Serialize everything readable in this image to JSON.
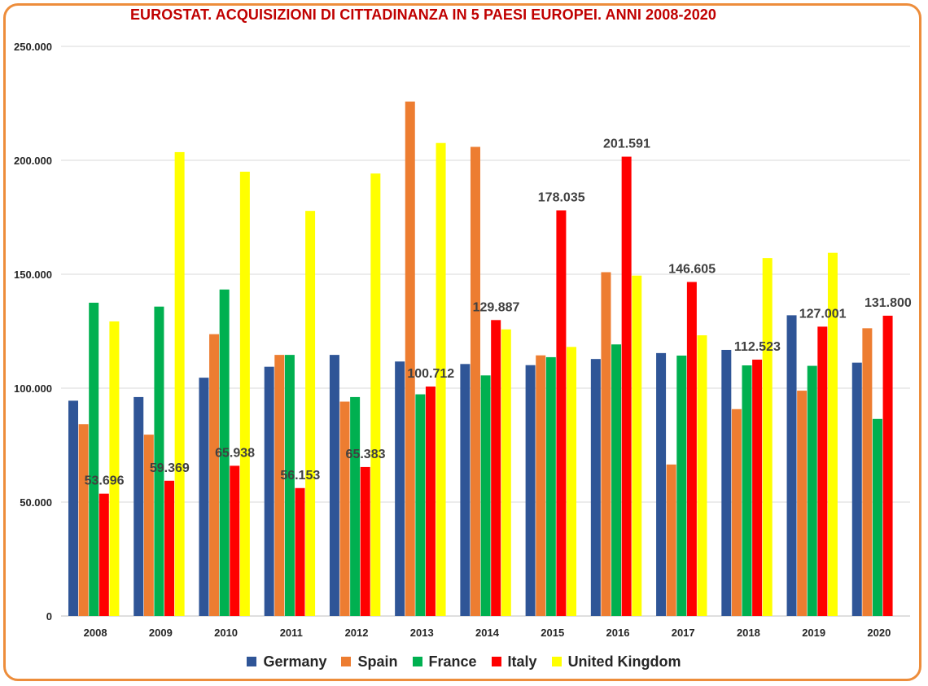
{
  "chart_data": {
    "type": "bar",
    "title": "EUROSTAT. ACQUISIZIONI DI CITTADINANZA IN 5 PAESI EUROPEI. ANNI 2008-2020",
    "xlabel": "",
    "ylabel": "",
    "ylim": [
      0,
      250000
    ],
    "yticks": [
      "0",
      "50.000",
      "100.000",
      "150.000",
      "200.000",
      "250.000"
    ],
    "ytick_values": [
      0,
      50000,
      100000,
      150000,
      200000,
      250000
    ],
    "grid": true,
    "legend_position": "bottom",
    "categories": [
      "2008",
      "2009",
      "2010",
      "2011",
      "2012",
      "2013",
      "2014",
      "2015",
      "2016",
      "2017",
      "2018",
      "2019",
      "2020"
    ],
    "series": [
      {
        "name": "Germany",
        "color": "#2F5597",
        "values": [
          94500,
          96100,
          104600,
          109400,
          114600,
          111700,
          110600,
          110100,
          112800,
          115400,
          116800,
          132000,
          111200
        ]
      },
      {
        "name": "Spain",
        "color": "#ED7D31",
        "values": [
          84200,
          79600,
          123700,
          114600,
          94100,
          225800,
          205900,
          114400,
          150900,
          66500,
          90800,
          98900,
          126300
        ]
      },
      {
        "name": "France",
        "color": "#00B050",
        "values": [
          137500,
          135800,
          143300,
          114600,
          96100,
          97300,
          105600,
          113600,
          119200,
          114300,
          110000,
          109800,
          86500
        ]
      },
      {
        "name": "Italy",
        "color": "#FF0000",
        "values": [
          53696,
          59369,
          65938,
          56153,
          65383,
          100712,
          129887,
          178035,
          201591,
          146605,
          112523,
          127001,
          131800
        ]
      },
      {
        "name": "United Kingdom",
        "color": "#FFFF00",
        "values": [
          129300,
          203600,
          195000,
          177800,
          194200,
          207600,
          125800,
          118100,
          149400,
          123200,
          157100,
          159400,
          null
        ]
      }
    ],
    "data_labels": {
      "series": "Italy",
      "labels": [
        "53.696",
        "59.369",
        "65.938",
        "56.153",
        "65.383",
        "100.712",
        "129.887",
        "178.035",
        "201.591",
        "146.605",
        "112.523",
        "127.001",
        "131.800"
      ]
    }
  }
}
